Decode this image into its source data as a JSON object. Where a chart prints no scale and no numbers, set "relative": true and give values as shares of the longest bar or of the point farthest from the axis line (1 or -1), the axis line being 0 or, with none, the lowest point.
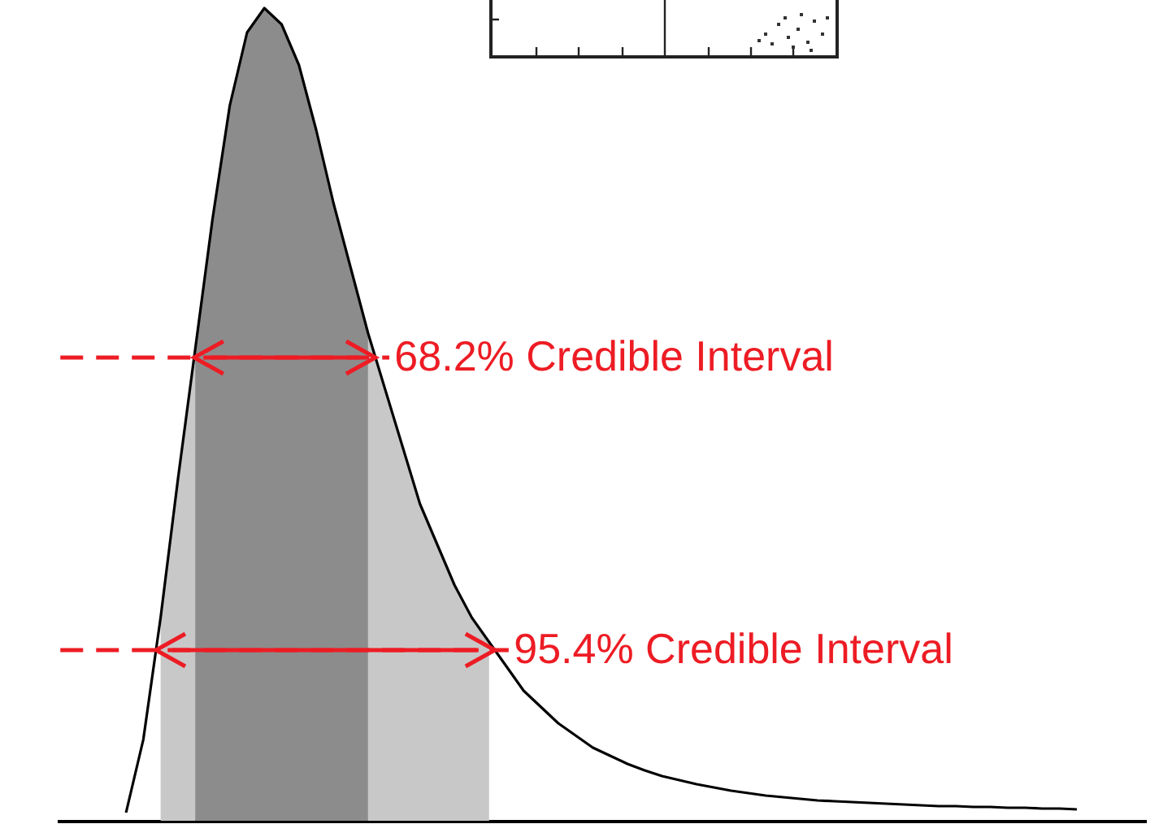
{
  "chart_data": {
    "type": "area",
    "relative": true,
    "categories": [
      null,
      null,
      null,
      null,
      null,
      null,
      null,
      null,
      null,
      null,
      null,
      null,
      null,
      null,
      null,
      null,
      null,
      null,
      null,
      null,
      null,
      null,
      null,
      null,
      null,
      null,
      null,
      null,
      null,
      null,
      null,
      null,
      null,
      null,
      null,
      null,
      null,
      null,
      null,
      null,
      null,
      null,
      null,
      null,
      null,
      null,
      null,
      null,
      null,
      null,
      null,
      null,
      null,
      null,
      null,
      null
    ],
    "series": [
      {
        "color": "#c8c8c8",
        "values": [
          null,
          null,
          0.25,
          0.42,
          0.58,
          null,
          null,
          null,
          null,
          null,
          null,
          null,
          null,
          null,
          0.6,
          0.53,
          0.46,
          0.39,
          0.34,
          0.29,
          0.25,
          0.22,
          null,
          null,
          null,
          null,
          null,
          null,
          null,
          null,
          null,
          null,
          null,
          null,
          null,
          null,
          null,
          null,
          null,
          null,
          null,
          null,
          null,
          null,
          null,
          null,
          null,
          null,
          null,
          null,
          null,
          null,
          null,
          null,
          null,
          null
        ]
      },
      {
        "color": "#8c8c8c",
        "values": [
          null,
          null,
          null,
          null,
          0.58,
          0.74,
          0.88,
          0.97,
          1.0,
          0.98,
          0.93,
          0.85,
          0.76,
          0.68,
          0.6,
          null,
          null,
          null,
          null,
          null,
          null,
          null,
          null,
          null,
          null,
          null,
          null,
          null,
          null,
          null,
          null,
          null,
          null,
          null,
          null,
          null,
          null,
          null,
          null,
          null,
          null,
          null,
          null,
          null,
          null,
          null,
          null,
          null,
          null,
          null,
          null,
          null,
          null,
          null,
          null,
          null
        ]
      },
      {
        "type": "line",
        "color": "#000000",
        "values": [
          0.01,
          0.1,
          0.25,
          0.42,
          0.58,
          0.74,
          0.88,
          0.97,
          1.0,
          0.98,
          0.93,
          0.85,
          0.76,
          0.68,
          0.6,
          0.53,
          0.46,
          0.39,
          0.34,
          0.29,
          0.25,
          0.22,
          0.19,
          0.16,
          0.14,
          0.12,
          0.105,
          0.09,
          0.08,
          0.07,
          0.062,
          0.055,
          0.05,
          0.045,
          0.041,
          0.037,
          0.034,
          0.031,
          0.029,
          0.027,
          0.025,
          0.024,
          0.023,
          0.022,
          0.021,
          0.02,
          0.019,
          0.018,
          0.018,
          0.017,
          0.017,
          0.016,
          0.016,
          0.015,
          0.015,
          0.014
        ]
      }
    ],
    "ref_lines": [
      {
        "axis": "y",
        "value": 0.57,
        "label": "68.2% Credible Interval",
        "color": "#ed1c24",
        "line_style": "dashed"
      },
      {
        "axis": "y",
        "value": 0.21,
        "label": "95.4% Credible Interval",
        "color": "#ed1c24",
        "line_style": "dashed"
      }
    ]
  }
}
